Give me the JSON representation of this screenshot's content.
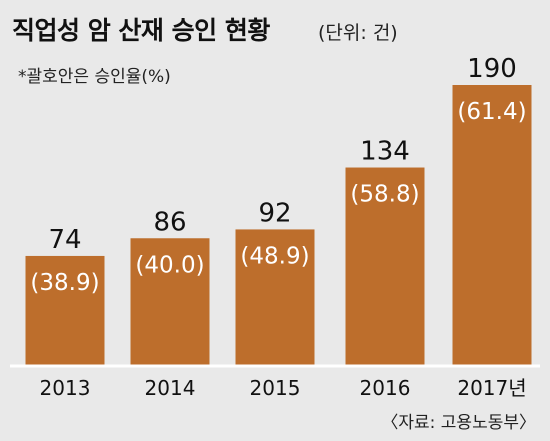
{
  "chart_data": {
    "type": "bar",
    "title": "직업성 암 산재 승인 현황",
    "unit": "(단위: 건)",
    "note": "*괄호안은 승인율(%)",
    "categories": [
      "2013",
      "2014",
      "2015",
      "2016",
      "2017년"
    ],
    "values": [
      74,
      86,
      92,
      134,
      190
    ],
    "rates": [
      "(38.9)",
      "(40.0)",
      "(48.9)",
      "(58.8)",
      "(61.4)"
    ],
    "ylim": [
      0,
      190
    ],
    "grid": false,
    "source": "〈자료: 고용노동부〉",
    "colors": {
      "bar": "#bd6e2c",
      "background": "#e9e9e9",
      "baseline": "#ffffff"
    }
  }
}
